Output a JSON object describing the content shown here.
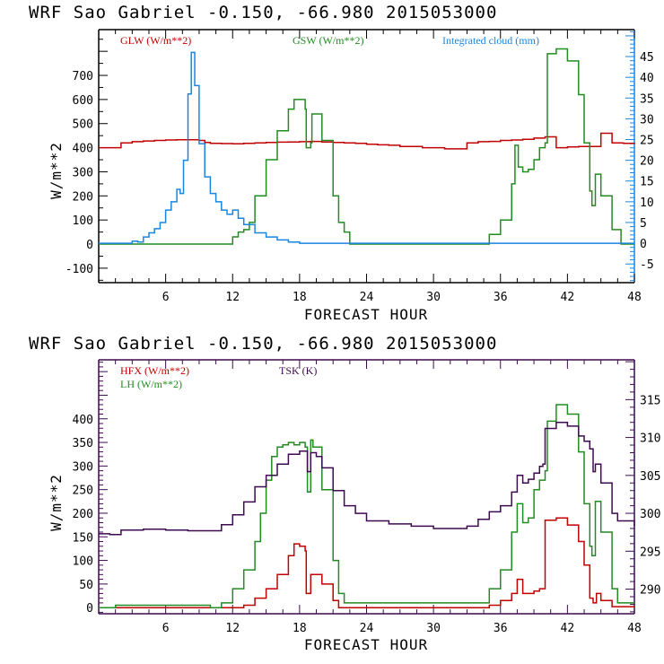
{
  "chart_data": [
    {
      "type": "line",
      "title": "WRF   Sao Gabriel   -0.150, -66.980  2015053000",
      "xlabel": "FORECAST HOUR",
      "ylabel": "W/m**2",
      "xlim": [
        0,
        48
      ],
      "ylim": [
        -160,
        890
      ],
      "y2lim": [
        -9.5,
        51.5
      ],
      "xticks": [
        "6",
        "12",
        "18",
        "24",
        "30",
        "36",
        "42",
        "48"
      ],
      "yticks": [
        "-100",
        "0",
        "100",
        "200",
        "300",
        "400",
        "500",
        "600",
        "700"
      ],
      "y2ticks": [
        "-5",
        "0",
        "5",
        "10",
        "15",
        "20",
        "25",
        "30",
        "35",
        "40",
        "45"
      ],
      "colors": {
        "GLW": "#c00000",
        "GSW": "#228b22",
        "cloud": "#1a85e0",
        "frame": "#000000",
        "right_axis": "#1a85e0"
      },
      "legend": [
        {
          "name": "GLW (W/m**2)",
          "color": "#c00000"
        },
        {
          "name": "GSW (W/m**2)",
          "color": "#228b22"
        },
        {
          "name": "Integrated cloud (mm)",
          "color": "#1a85e0"
        }
      ],
      "series": [
        {
          "name": "GLW",
          "axis": "left",
          "x": [
            0,
            1.5,
            2,
            3,
            4,
            5,
            6,
            7,
            8,
            9,
            9.5,
            10,
            11,
            12,
            13,
            14,
            15,
            16,
            17,
            18,
            19,
            20,
            21,
            22,
            23,
            24,
            25,
            26,
            27,
            28,
            29,
            30,
            31,
            32,
            33,
            34,
            35,
            36,
            37,
            38,
            39,
            40,
            41,
            42,
            43,
            44,
            45,
            46,
            47,
            48
          ],
          "y": [
            400,
            400,
            420,
            425,
            428,
            430,
            432,
            433,
            433,
            430,
            422,
            418,
            417,
            416,
            418,
            420,
            422,
            423,
            424,
            425,
            426,
            424,
            422,
            420,
            418,
            414,
            412,
            410,
            405,
            405,
            400,
            400,
            395,
            395,
            420,
            425,
            426,
            430,
            432,
            435,
            440,
            445,
            400,
            403,
            405,
            405,
            460,
            420,
            418,
            415
          ]
        },
        {
          "name": "GSW",
          "axis": "left",
          "x": [
            0,
            11,
            12,
            12.5,
            13,
            13.5,
            14,
            15,
            16,
            17,
            17.5,
            18,
            18.5,
            18.6,
            19,
            19.1,
            20,
            21,
            21.5,
            22,
            22.5,
            34.5,
            35,
            36,
            37,
            37.3,
            37.6,
            38,
            38.5,
            39,
            39.5,
            40,
            40.2,
            41,
            42,
            43,
            43.5,
            44,
            44.2,
            44.5,
            45,
            46,
            46.8,
            48
          ],
          "y": [
            0,
            0,
            30,
            50,
            60,
            90,
            200,
            350,
            470,
            560,
            600,
            600,
            560,
            400,
            420,
            540,
            430,
            200,
            90,
            50,
            0,
            0,
            40,
            100,
            250,
            410,
            320,
            300,
            310,
            350,
            400,
            420,
            790,
            810,
            760,
            620,
            420,
            220,
            160,
            290,
            200,
            60,
            0,
            0
          ]
        },
        {
          "name": "Integrated cloud",
          "axis": "right",
          "x": [
            0,
            2.5,
            3,
            3.5,
            4,
            4.5,
            5,
            5.5,
            6,
            6.5,
            7,
            7.3,
            7.6,
            8,
            8.3,
            8.6,
            9,
            9.5,
            10,
            10.5,
            11,
            11.5,
            12,
            12.5,
            13,
            14,
            15,
            16,
            17,
            18,
            48
          ],
          "y": [
            0,
            0,
            0.5,
            0.3,
            1.5,
            2.5,
            3.5,
            5,
            8,
            10,
            13,
            12,
            20,
            36,
            46,
            38,
            24,
            16,
            12,
            10,
            8,
            7,
            8,
            6,
            4.5,
            2.5,
            1.5,
            0.8,
            0.3,
            0,
            0
          ]
        }
      ]
    },
    {
      "type": "line",
      "title": "WRF   Sao Gabriel   -0.150, -66.980  2015053000",
      "xlabel": "FORECAST HOUR",
      "ylabel": "W/m**2",
      "xlim": [
        0,
        48
      ],
      "ylim": [
        -13,
        525
      ],
      "y2lim": [
        286.75,
        320.25
      ],
      "xticks": [
        "6",
        "12",
        "18",
        "24",
        "30",
        "36",
        "42",
        "48"
      ],
      "yticks": [
        "0",
        "50",
        "100",
        "150",
        "200",
        "250",
        "300",
        "350",
        "400"
      ],
      "y2ticks": [
        "290",
        "295",
        "300",
        "305",
        "310",
        "315"
      ],
      "colors": {
        "HFX": "#c00000",
        "LH": "#228b22",
        "TSK": "#3d0a4f",
        "frame": "#3d0a4f"
      },
      "legend": [
        {
          "name": "HFX (W/m**2)",
          "color": "#c00000"
        },
        {
          "name": "LH  (W/m**2)",
          "color": "#228b22"
        },
        {
          "name": "TSK (K)",
          "color": "#3d0a4f"
        }
      ],
      "series": [
        {
          "name": "HFX",
          "axis": "left",
          "x": [
            0,
            6,
            8,
            10,
            12,
            13,
            14,
            15,
            16,
            17,
            17.5,
            18,
            18.5,
            18.6,
            19,
            20,
            21,
            21.5,
            22,
            24,
            30,
            34,
            35,
            36,
            37,
            37.5,
            38,
            39,
            39.5,
            40,
            41,
            42,
            43,
            43.5,
            44,
            44.3,
            44.6,
            45,
            46,
            48
          ],
          "y": [
            0,
            0,
            0,
            0,
            0,
            5,
            20,
            40,
            70,
            110,
            135,
            130,
            120,
            30,
            70,
            50,
            15,
            0,
            0,
            0,
            0,
            0,
            5,
            15,
            30,
            60,
            30,
            35,
            40,
            185,
            190,
            175,
            140,
            90,
            20,
            10,
            30,
            15,
            2,
            2
          ]
        },
        {
          "name": "LH",
          "axis": "left",
          "x": [
            0,
            1.5,
            3,
            5,
            8,
            10,
            11,
            12,
            13,
            14,
            14.5,
            15,
            15.5,
            16,
            16.5,
            17,
            17.5,
            18,
            18.5,
            18.7,
            19,
            19.2,
            20,
            21,
            21.5,
            22,
            23,
            24,
            30,
            34,
            35,
            36,
            37,
            37.5,
            38,
            38.5,
            39,
            39.5,
            40,
            40.2,
            41,
            42,
            43,
            43.5,
            44,
            44.2,
            44.5,
            45,
            46,
            46.5,
            48
          ],
          "y": [
            0,
            5,
            5,
            5,
            5,
            0,
            10,
            40,
            80,
            140,
            200,
            270,
            320,
            340,
            345,
            350,
            345,
            350,
            340,
            245,
            355,
            340,
            250,
            100,
            30,
            10,
            10,
            10,
            10,
            10,
            40,
            80,
            160,
            220,
            180,
            190,
            250,
            270,
            290,
            395,
            430,
            410,
            330,
            220,
            130,
            110,
            225,
            160,
            40,
            10,
            10
          ]
        },
        {
          "name": "TSK",
          "axis": "right",
          "x": [
            0,
            1,
            2,
            4,
            6,
            8,
            10,
            11,
            12,
            13,
            14,
            15,
            16,
            17,
            18,
            18.5,
            18.7,
            19,
            19.5,
            20,
            21,
            22,
            23,
            24,
            26,
            28,
            30,
            32,
            33,
            34,
            35,
            36,
            37,
            37.5,
            38,
            38.5,
            39,
            39.5,
            39.8,
            40,
            41,
            42,
            43,
            43.5,
            44,
            44.3,
            44.5,
            45,
            46,
            46.5,
            48
          ],
          "y": [
            297.3,
            297.2,
            297.8,
            297.9,
            297.8,
            297.7,
            297.7,
            298.5,
            299.8,
            301.5,
            303.5,
            305,
            306.5,
            307.8,
            308.2,
            308.2,
            305.5,
            308,
            307.5,
            306,
            303,
            301,
            300,
            299,
            298.6,
            298.3,
            298,
            298,
            298.3,
            299.2,
            300.2,
            301,
            302.8,
            305,
            304,
            304.5,
            305.3,
            306.2,
            306.5,
            311.2,
            312,
            311.5,
            310.2,
            309.5,
            308.5,
            305.5,
            306.5,
            304,
            300,
            299,
            298.3
          ]
        }
      ]
    }
  ]
}
